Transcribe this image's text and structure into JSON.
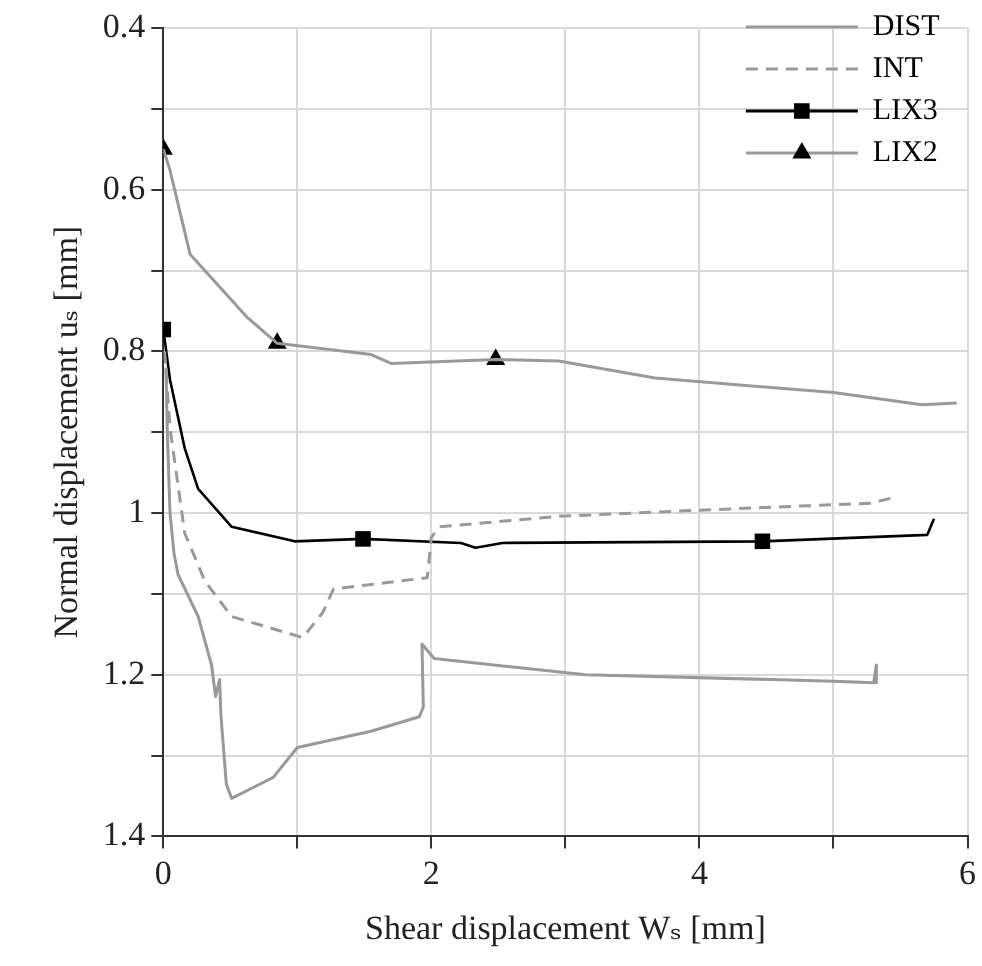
{
  "chart_data": {
    "type": "line",
    "xlabel": "Shear displacement Wₛ [mm]",
    "ylabel": "Normal displacement uₛ [mm]",
    "xlim": [
      0,
      6
    ],
    "xticks": [
      0,
      {
        "value": 1,
        "label": null
      },
      2,
      {
        "value": 3,
        "label": null
      },
      4,
      {
        "value": 5,
        "label": null
      },
      6
    ],
    "ylim": [
      1.4,
      0.4
    ],
    "yticks": [
      0.4,
      {
        "value": 0.5,
        "label": null
      },
      0.6,
      {
        "value": 0.7,
        "label": null
      },
      0.8,
      {
        "value": 0.9,
        "label": null
      },
      1,
      {
        "value": 1.1,
        "label": null
      },
      1.2,
      {
        "value": 1.3,
        "label": null
      },
      1.4
    ],
    "grid": true,
    "legend": "top right",
    "series": [
      {
        "name": "DIST",
        "color": "#999999",
        "line_style": "solid",
        "x": [
          0.02,
          0.03,
          0.05,
          0.08,
          0.11,
          0.26,
          0.36,
          0.39,
          0.42,
          0.43,
          0.47,
          0.51,
          0.82,
          1.0,
          1.55,
          1.91,
          1.94,
          1.93,
          2.02,
          3.15,
          5.0,
          5.3,
          5.32,
          5.32
        ],
        "values": [
          0.82,
          0.9,
          1.0,
          1.05,
          1.076,
          1.128,
          1.188,
          1.227,
          1.206,
          1.25,
          1.335,
          1.353,
          1.327,
          1.29,
          1.27,
          1.252,
          1.24,
          1.162,
          1.18,
          1.2,
          1.208,
          1.21,
          1.188,
          1.21
        ]
      },
      {
        "name": "INT",
        "color": "#999999",
        "line_style": "dashed",
        "x": [
          0.01,
          0.05,
          0.16,
          0.31,
          0.51,
          1.04,
          1.19,
          1.27,
          1.97,
          2.0,
          2.06,
          2.95,
          4.5,
          5.27,
          5.47
        ],
        "values": [
          0.8,
          0.895,
          1.025,
          1.084,
          1.128,
          1.154,
          1.123,
          1.094,
          1.08,
          1.03,
          1.017,
          1.004,
          0.993,
          0.988,
          0.98
        ]
      },
      {
        "name": "LIX3",
        "color": "#000000",
        "line_style": "solid",
        "x": [
          0,
          0.05,
          0.16,
          0.26,
          0.51,
          0.98,
          1.49,
          2.22,
          2.33,
          2.53,
          4.47,
          5.7,
          5.75
        ],
        "values": [
          0.773,
          0.835,
          0.92,
          0.97,
          1.017,
          1.035,
          1.032,
          1.037,
          1.043,
          1.037,
          1.035,
          1.027,
          1.007
        ]
      },
      {
        "type": "scatter",
        "color": "#000000",
        "marker": "square",
        "x": [
          0,
          1.49,
          4.47
        ],
        "values": [
          0.773,
          1.032,
          1.035
        ]
      },
      {
        "name": "LIX2",
        "color": "#999999",
        "line_style": "solid",
        "x": [
          0,
          0.05,
          0.2,
          0.62,
          0.85,
          1.55,
          1.7,
          2.48,
          2.95,
          3.67,
          5.0,
          5.66,
          5.92
        ],
        "values": [
          0.55,
          0.576,
          0.68,
          0.757,
          0.79,
          0.804,
          0.815,
          0.81,
          0.812,
          0.833,
          0.851,
          0.866,
          0.864
        ]
      },
      {
        "type": "scatter",
        "color": "#000000",
        "marker": "triangle",
        "x": [
          0,
          0.85,
          2.48
        ],
        "values": [
          0.55,
          0.79,
          0.81
        ]
      }
    ]
  }
}
